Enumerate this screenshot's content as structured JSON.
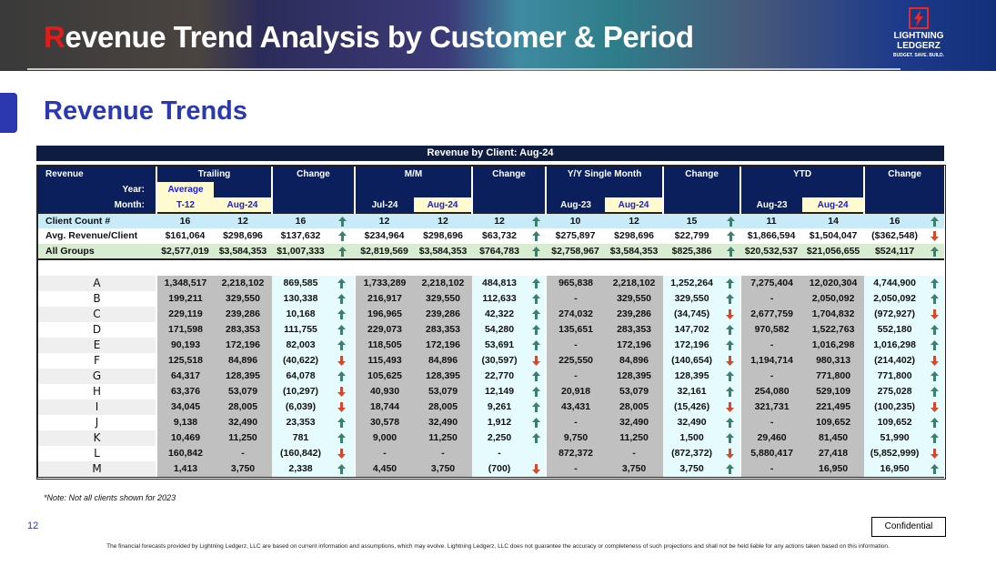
{
  "header": {
    "title_first": "R",
    "title_rest": "evenue Trend Analysis by Customer & Period",
    "logo_text": "LIGHTNING LEDGERZ",
    "logo_tagline": "BUDGET. SAVE. BUILD."
  },
  "section_title": "Revenue Trends",
  "table": {
    "title": "Revenue by Client: Aug-24",
    "header": {
      "revenue": "Revenue",
      "year_label": "Year:",
      "month_label": "Month:",
      "trailing": "Trailing",
      "average": "Average",
      "t12": "T-12",
      "aug24": "Aug-24",
      "change": "Change",
      "mm": "M/M",
      "jul24": "Jul-24",
      "yy": "Y/Y Single Month",
      "aug23": "Aug-23",
      "ytd": "YTD"
    },
    "summary": [
      {
        "label": "Client Count #",
        "values": [
          "16",
          "12",
          "16",
          "12",
          "12",
          "12",
          "10",
          "12",
          "15",
          "11",
          "14",
          "16"
        ],
        "dirs": [
          "up",
          "up",
          "up",
          "up"
        ]
      },
      {
        "label": "Avg. Revenue/Client",
        "values": [
          "$161,064",
          "$298,696",
          "$137,632",
          "$234,964",
          "$298,696",
          "$63,732",
          "$275,897",
          "$298,696",
          "$22,799",
          "$1,866,594",
          "$1,504,047",
          "($362,548)"
        ],
        "dirs": [
          "up",
          "up",
          "up",
          "down"
        ]
      },
      {
        "label": "All Groups",
        "values": [
          "$2,577,019",
          "$3,584,353",
          "$1,007,333",
          "$2,819,569",
          "$3,584,353",
          "$764,783",
          "$2,758,967",
          "$3,584,353",
          "$825,386",
          "$20,532,537",
          "$21,056,655",
          "$524,117"
        ],
        "dirs": [
          "up",
          "up",
          "up",
          "up"
        ]
      }
    ],
    "clients": [
      {
        "label": "A",
        "values": [
          "1,348,517",
          "2,218,102",
          "869,585",
          "1,733,289",
          "2,218,102",
          "484,813",
          "965,838",
          "2,218,102",
          "1,252,264",
          "7,275,404",
          "12,020,304",
          "4,744,900"
        ],
        "dirs": [
          "up",
          "up",
          "up",
          "up"
        ]
      },
      {
        "label": "B",
        "values": [
          "199,211",
          "329,550",
          "130,338",
          "216,917",
          "329,550",
          "112,633",
          "-",
          "329,550",
          "329,550",
          "-",
          "2,050,092",
          "2,050,092"
        ],
        "dirs": [
          "up",
          "up",
          "up",
          "up"
        ]
      },
      {
        "label": "C",
        "values": [
          "229,119",
          "239,286",
          "10,168",
          "196,965",
          "239,286",
          "42,322",
          "274,032",
          "239,286",
          "(34,745)",
          "2,677,759",
          "1,704,832",
          "(972,927)"
        ],
        "dirs": [
          "up",
          "up",
          "down",
          "down"
        ]
      },
      {
        "label": "D",
        "values": [
          "171,598",
          "283,353",
          "111,755",
          "229,073",
          "283,353",
          "54,280",
          "135,651",
          "283,353",
          "147,702",
          "970,582",
          "1,522,763",
          "552,180"
        ],
        "dirs": [
          "up",
          "up",
          "up",
          "up"
        ]
      },
      {
        "label": "E",
        "values": [
          "90,193",
          "172,196",
          "82,003",
          "118,505",
          "172,196",
          "53,691",
          "-",
          "172,196",
          "172,196",
          "-",
          "1,016,298",
          "1,016,298"
        ],
        "dirs": [
          "up",
          "up",
          "up",
          "up"
        ]
      },
      {
        "label": "F",
        "values": [
          "125,518",
          "84,896",
          "(40,622)",
          "115,493",
          "84,896",
          "(30,597)",
          "225,550",
          "84,896",
          "(140,654)",
          "1,194,714",
          "980,313",
          "(214,402)"
        ],
        "dirs": [
          "down",
          "down",
          "down",
          "down"
        ]
      },
      {
        "label": "G",
        "values": [
          "64,317",
          "128,395",
          "64,078",
          "105,625",
          "128,395",
          "22,770",
          "-",
          "128,395",
          "128,395",
          "-",
          "771,800",
          "771,800"
        ],
        "dirs": [
          "up",
          "up",
          "up",
          "up"
        ]
      },
      {
        "label": "H",
        "values": [
          "63,376",
          "53,079",
          "(10,297)",
          "40,930",
          "53,079",
          "12,149",
          "20,918",
          "53,079",
          "32,161",
          "254,080",
          "529,109",
          "275,028"
        ],
        "dirs": [
          "down",
          "up",
          "up",
          "up"
        ]
      },
      {
        "label": "I",
        "values": [
          "34,045",
          "28,005",
          "(6,039)",
          "18,744",
          "28,005",
          "9,261",
          "43,431",
          "28,005",
          "(15,426)",
          "321,731",
          "221,495",
          "(100,235)"
        ],
        "dirs": [
          "down",
          "up",
          "down",
          "down"
        ]
      },
      {
        "label": "J",
        "values": [
          "9,138",
          "32,490",
          "23,353",
          "30,578",
          "32,490",
          "1,912",
          "-",
          "32,490",
          "32,490",
          "-",
          "109,652",
          "109,652"
        ],
        "dirs": [
          "up",
          "up",
          "up",
          "up"
        ]
      },
      {
        "label": "K",
        "values": [
          "10,469",
          "11,250",
          "781",
          "9,000",
          "11,250",
          "2,250",
          "9,750",
          "11,250",
          "1,500",
          "29,460",
          "81,450",
          "51,990"
        ],
        "dirs": [
          "up",
          "up",
          "up",
          "up"
        ]
      },
      {
        "label": "L",
        "values": [
          "160,842",
          "-",
          "(160,842)",
          "-",
          "-",
          "-",
          "872,372",
          "-",
          "(872,372)",
          "5,880,417",
          "27,418",
          "(5,852,999)"
        ],
        "dirs": [
          "down",
          "",
          "down",
          "down"
        ]
      },
      {
        "label": "M",
        "values": [
          "1,413",
          "3,750",
          "2,338",
          "4,450",
          "3,750",
          "(700)",
          "-",
          "3,750",
          "3,750",
          "-",
          "16,950",
          "16,950"
        ],
        "dirs": [
          "up",
          "down",
          "up",
          "up"
        ]
      }
    ]
  },
  "icons": {
    "up": "green-up-arrow-icon",
    "down": "red-down-arrow-icon"
  },
  "colors": {
    "header_navy": "#0a1f5c",
    "accent_blue": "#2b38b0",
    "up_green": "#3c7f6c",
    "down_red": "#d5492a",
    "highlight_yellow": "#fffbd0"
  },
  "footer": {
    "note": "*Note: Not all clients shown for 2023",
    "page_number": "12",
    "confidential": "Confidential",
    "disclaimer": "The financial forecasts provided by Lightning Ledgerz, LLC are based on current information and assumptions, which may evolve. Lightning Ledgerz, LLC does not guarantee the accuracy or completeness of such projections and shall not be held liable for any actions taken based on this information."
  }
}
